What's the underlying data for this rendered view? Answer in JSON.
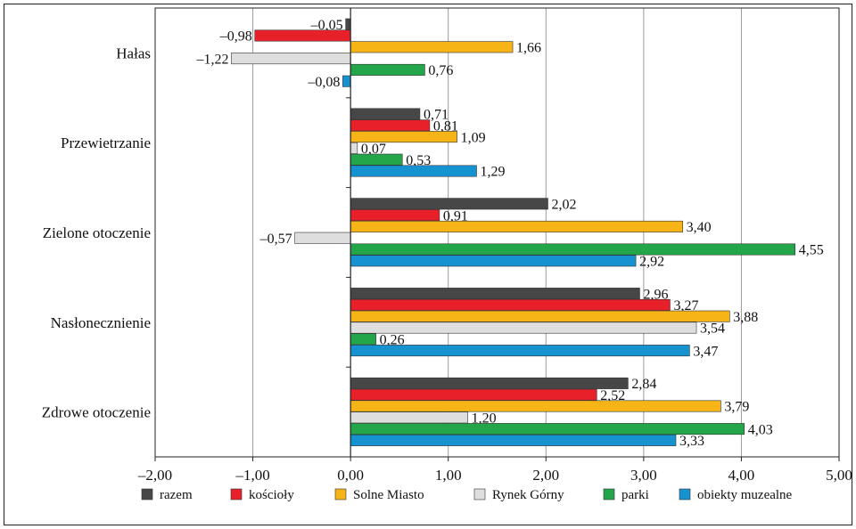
{
  "chart_data": {
    "type": "bar",
    "orientation": "horizontal",
    "categories": [
      "Hałas",
      "Przewietrzanie",
      "Zielone otoczenie",
      "Nasłonecznienie",
      "Zdrowe otoczenie"
    ],
    "series": [
      {
        "name": "razem",
        "color": "#474747",
        "values": [
          -0.05,
          0.71,
          2.02,
          2.96,
          2.84
        ],
        "labels": [
          "–0,05",
          "0,71",
          "2,02",
          "2,96",
          "2,84"
        ]
      },
      {
        "name": "kościoły",
        "color": "#e8202a",
        "values": [
          -0.98,
          0.81,
          0.91,
          3.27,
          2.52
        ],
        "labels": [
          "–0,98",
          "0,81",
          "0,91",
          "3,27",
          "2,52"
        ]
      },
      {
        "name": "Solne Miasto",
        "color": "#f6b417",
        "values": [
          1.66,
          1.09,
          3.4,
          3.88,
          3.79
        ],
        "labels": [
          "1,66",
          "1,09",
          "3,40",
          "3,88",
          "3,79"
        ]
      },
      {
        "name": "Rynek Górny",
        "color": "#dedede",
        "values": [
          -1.22,
          0.07,
          -0.57,
          3.54,
          1.2
        ],
        "labels": [
          "–1,22",
          "0,07",
          "–0,57",
          "3,54",
          "1,20"
        ]
      },
      {
        "name": "parki",
        "color": "#23a54a",
        "values": [
          0.76,
          0.53,
          4.55,
          0.26,
          4.03
        ],
        "labels": [
          "0,76",
          "0,53",
          "4,55",
          "0,26",
          "4,03"
        ]
      },
      {
        "name": "obiekty muzealne",
        "color": "#1592cf",
        "values": [
          -0.08,
          1.29,
          2.92,
          3.47,
          3.33
        ],
        "labels": [
          "–0,08",
          "1,29",
          "2,92",
          "3,47",
          "3,33"
        ]
      }
    ],
    "x_ticks": [
      "–2,00",
      "–1,00",
      "0,00",
      "1,00",
      "2,00",
      "3,00",
      "4,00",
      "5,00"
    ],
    "xlim": [
      -2,
      5
    ],
    "grid": "vertical",
    "legend": "bottom"
  }
}
